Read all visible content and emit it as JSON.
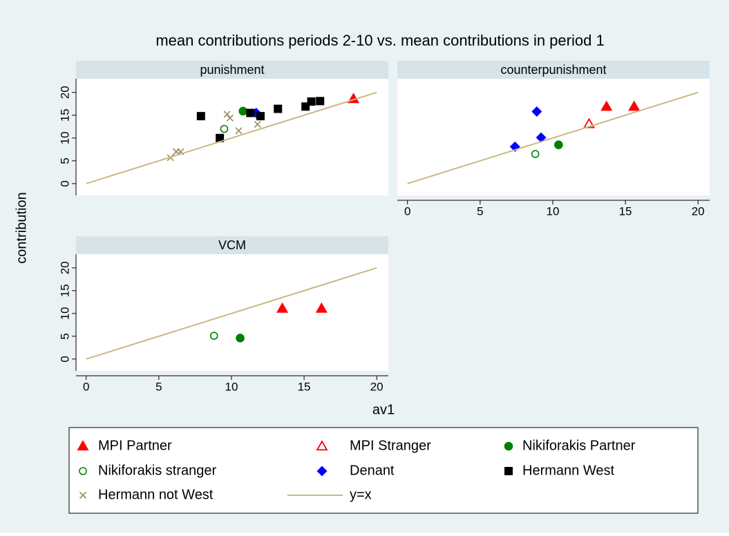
{
  "chart_data": {
    "type": "scatter",
    "title": "mean contributions periods 2-10 vs. mean contributions in period 1",
    "xlabel": "av1",
    "ylabel": "contribution",
    "xlim": [
      -0.7,
      20.8
    ],
    "ylim": [
      -2.6,
      23.0
    ],
    "xticks": [
      0,
      5,
      10,
      15,
      20
    ],
    "yticks": [
      0,
      5,
      10,
      15,
      20
    ],
    "series": [
      {
        "name": "MPI Partner",
        "color": "#ff0000",
        "marker": "triangle"
      },
      {
        "name": "MPI Stranger",
        "color": "#ff0000",
        "marker": "triangle-open"
      },
      {
        "name": "Nikiforakis Partner",
        "color": "#008000",
        "marker": "circle"
      },
      {
        "name": "Nikiforakis stranger",
        "color": "#008000",
        "marker": "circle-open"
      },
      {
        "name": "Denant",
        "color": "#0000ff",
        "marker": "diamond"
      },
      {
        "name": "Hermann West",
        "color": "#000000",
        "marker": "square"
      },
      {
        "name": "Hermann not West",
        "color": "#9c8a5e",
        "marker": "x"
      },
      {
        "name": "y=x",
        "color": "#c8b882",
        "marker": "line"
      }
    ],
    "panels": [
      {
        "title": "punishment",
        "series": [
          {
            "x": [
              18.4
            ],
            "values": [
              18.6
            ]
          },
          {
            "x": [],
            "values": []
          },
          {
            "x": [
              10.8
            ],
            "values": [
              15.9
            ]
          },
          {
            "x": [
              9.5
            ],
            "values": [
              12.0
            ]
          },
          {
            "x": [
              11.7
            ],
            "values": [
              15.5
            ]
          },
          {
            "x": [
              7.9,
              9.2,
              11.3,
              12.0,
              13.2,
              15.1,
              15.5,
              16.1
            ],
            "values": [
              14.8,
              10.0,
              15.5,
              14.8,
              16.4,
              16.9,
              18.0,
              18.1
            ]
          },
          {
            "x": [
              5.8,
              6.2,
              6.5,
              9.7,
              9.9,
              10.5,
              11.8
            ],
            "values": [
              5.7,
              7.0,
              7.0,
              15.2,
              14.4,
              11.6,
              13.0
            ]
          },
          {
            "x": [
              0,
              20
            ],
            "values": [
              0,
              20
            ]
          }
        ]
      },
      {
        "title": "counterpunishment",
        "series": [
          {
            "x": [
              13.7,
              15.6
            ],
            "values": [
              16.9,
              16.9
            ]
          },
          {
            "x": [
              12.5
            ],
            "values": [
              13.1
            ]
          },
          {
            "x": [
              10.4
            ],
            "values": [
              8.5
            ]
          },
          {
            "x": [
              8.8
            ],
            "values": [
              6.5
            ]
          },
          {
            "x": [
              7.4,
              8.9,
              9.2
            ],
            "values": [
              8.1,
              15.8,
              10.1
            ]
          },
          {
            "x": [],
            "values": []
          },
          {
            "x": [],
            "values": []
          },
          {
            "x": [
              0,
              20
            ],
            "values": [
              0,
              20
            ]
          }
        ]
      },
      {
        "title": "VCM",
        "series": [
          {
            "x": [
              13.5,
              16.2
            ],
            "values": [
              11.1,
              11.1
            ]
          },
          {
            "x": [],
            "values": []
          },
          {
            "x": [
              10.6
            ],
            "values": [
              4.6
            ]
          },
          {
            "x": [
              8.8
            ],
            "values": [
              5.1
            ]
          },
          {
            "x": [],
            "values": []
          },
          {
            "x": [],
            "values": []
          },
          {
            "x": [],
            "values": []
          },
          {
            "x": [
              0,
              20
            ],
            "values": [
              0,
              20
            ]
          }
        ]
      }
    ]
  }
}
